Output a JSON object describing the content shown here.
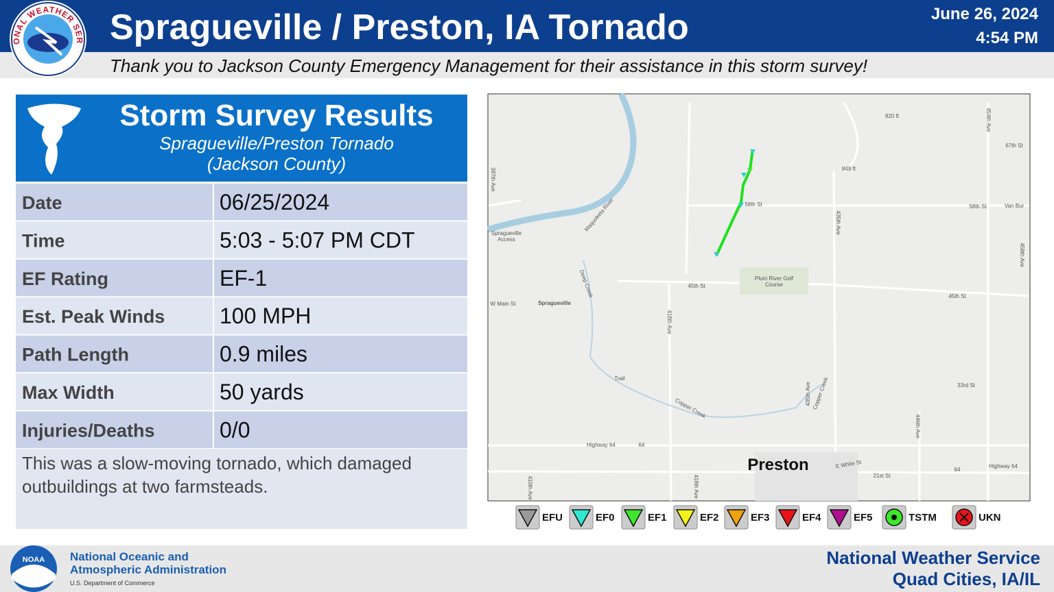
{
  "header": {
    "logo_text": "NATIONAL WEATHER SERVICE",
    "title": "Spragueville / Preston, IA Tornado",
    "date": "June 26, 2024",
    "time": "4:54 PM",
    "subtitle": "Thank you to Jackson County Emergency Management for their assistance in this storm survey!"
  },
  "survey": {
    "title": "Storm Survey Results",
    "subtitle": "Spragueville/Preston Tornado",
    "county": "(Jackson County)",
    "rows": [
      [
        "Date",
        "06/25/2024"
      ],
      [
        "Time",
        "5:03 - 5:07 PM CDT"
      ],
      [
        "EF Rating",
        "EF-1"
      ],
      [
        "Est. Peak Winds",
        "100 MPH"
      ],
      [
        "Path Length",
        "0.9 miles"
      ],
      [
        "Max Width",
        "50 yards"
      ],
      [
        "Injuries/Deaths",
        "0/0"
      ]
    ],
    "description": "This was a slow-moving tornado, which damaged outbuildings at two farmsteads."
  },
  "map": {
    "labels": [
      "820 ft",
      "454th Ave",
      "67th St",
      "387th Ave",
      "849 ft",
      "Maquoketa River",
      "58th St",
      "58th St",
      "Van Bur",
      "435th Ave",
      "458th Ave",
      "Spragueville",
      "Access",
      "Plum River Golf",
      "Course",
      "45th St",
      "45th St",
      "W Main St",
      "Spragueville",
      "Deep Creek",
      "418th Ave",
      "Copper Creek",
      "Trail",
      "33rd St",
      "435th Ave",
      "Copper Creek",
      "446th Ave",
      "Highway 64",
      "64",
      "E White St",
      "21st St",
      "64",
      "Highway 64",
      "418th Ave",
      "410th Ave",
      "Preston"
    ]
  },
  "legend": [
    {
      "label": "EFU",
      "color": "#9a9a9a"
    },
    {
      "label": "EF0",
      "color": "#2fe8d0"
    },
    {
      "label": "EF1",
      "color": "#3ee62e"
    },
    {
      "label": "EF2",
      "color": "#f4f21a"
    },
    {
      "label": "EF3",
      "color": "#f0a010"
    },
    {
      "label": "EF4",
      "color": "#e8141a"
    },
    {
      "label": "EF5",
      "color": "#b0108e"
    },
    {
      "label": "TSTM",
      "color": "#3ee62e"
    },
    {
      "label": "UKN",
      "color": "#e8141a"
    }
  ],
  "footer": {
    "noaa_logo": "NOAA",
    "noaa_line1": "National Oceanic and",
    "noaa_line2": "Atmospheric Administration",
    "noaa_dept": "U.S. Department of Commerce",
    "nws_line1": "National Weather Service",
    "nws_line2": "Quad Cities, IA/IL"
  }
}
